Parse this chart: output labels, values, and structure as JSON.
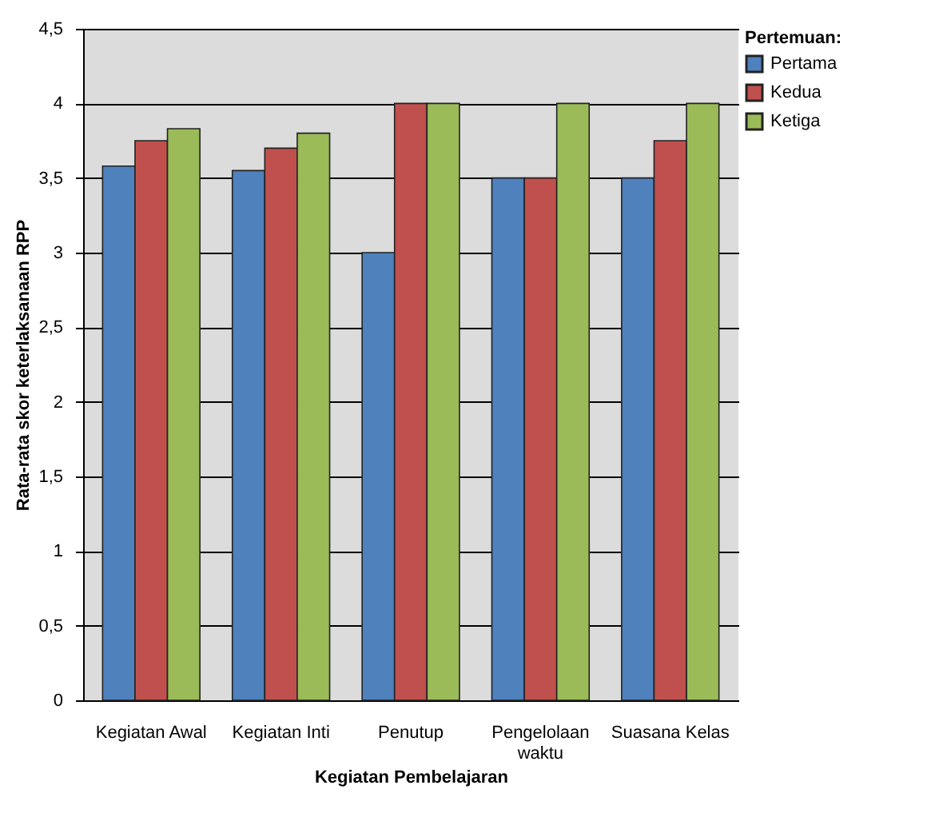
{
  "chart_data": {
    "type": "bar",
    "xlabel": "Kegiatan Pembelajaran",
    "ylabel": "Rata-rata skor keterlaksanaan RPP",
    "legend_title": "Pertemuan:",
    "categories": [
      "Kegiatan Awal",
      "Kegiatan Inti",
      "Penutup",
      "Pengelolaan waktu",
      "Suasana Kelas"
    ],
    "series": [
      {
        "name": "Pertama",
        "color": "#4f81bd",
        "values": [
          3.58,
          3.55,
          3,
          3.5,
          3.5
        ]
      },
      {
        "name": "Kedua",
        "color": "#c0504d",
        "values": [
          3.75,
          3.7,
          4,
          3.5,
          3.75
        ]
      },
      {
        "name": "Ketiga",
        "color": "#9bbb59",
        "values": [
          3.83,
          3.8,
          4,
          4,
          4
        ]
      }
    ],
    "ylim": [
      0,
      4.5
    ],
    "yticks": [
      0,
      {
        "value": 0.5,
        "label": "0,5"
      },
      1,
      {
        "value": 1.5,
        "label": "1,5"
      },
      2,
      {
        "value": 2.5,
        "label": "2,5"
      },
      3,
      {
        "value": 3.5,
        "label": "3,5"
      },
      4,
      {
        "value": 4.5,
        "label": "4,5"
      }
    ],
    "grid": "y",
    "legend": "right"
  }
}
